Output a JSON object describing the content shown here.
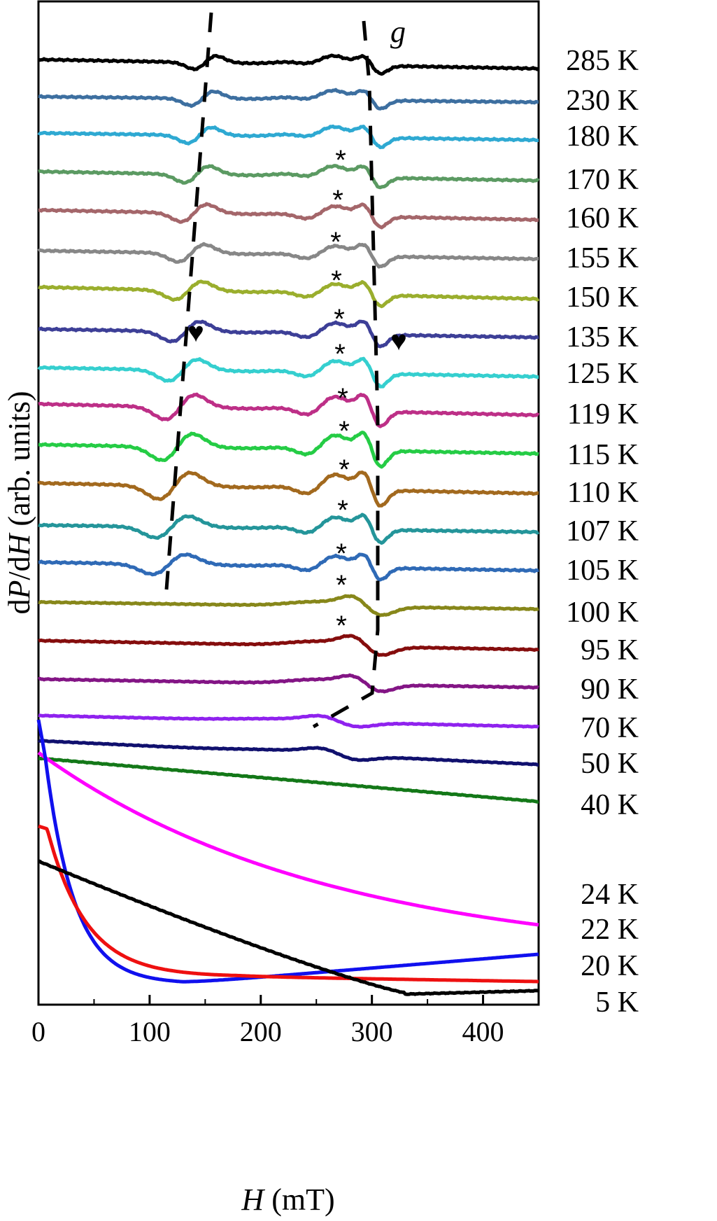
{
  "chart_data": {
    "type": "line",
    "xlabel": {
      "italic": "H",
      "unit": " (mT)"
    },
    "ylabel": {
      "d1": "d",
      "v1": "P",
      "slash": "/d",
      "v2": "H",
      "unit": " (arb. units)"
    },
    "xlim": [
      0,
      450
    ],
    "xticks": [
      0,
      100,
      200,
      300,
      400
    ],
    "xtick_labels": [
      "0",
      "100",
      "200",
      "300",
      "400"
    ],
    "yticks_shown": false,
    "annotation_g": "g",
    "asterisk": "*",
    "heart": "♥",
    "series": [
      {
        "name": "285 K",
        "color": "#000000",
        "style": "esr",
        "base": 85,
        "amp": 0.8,
        "right": 98
      },
      {
        "name": "230 K",
        "color": "#3d6fa0",
        "style": "esr",
        "base": 138,
        "amp": 0.85,
        "right": 146
      },
      {
        "name": "180 K",
        "color": "#2ea9d2",
        "style": "esr",
        "base": 190,
        "amp": 0.95,
        "right": 200
      },
      {
        "name": "170 K",
        "color": "#5b9a62",
        "style": "esr",
        "base": 245,
        "amp": 1.0,
        "right": 258
      },
      {
        "name": "160 K",
        "color": "#a4666a",
        "style": "esr",
        "base": 300,
        "amp": 1.05,
        "right": 314
      },
      {
        "name": "155 K",
        "color": "#878787",
        "style": "esr",
        "base": 358,
        "amp": 1.05,
        "right": 370
      },
      {
        "name": "150 K",
        "color": "#9aae2d",
        "style": "esr",
        "base": 410,
        "amp": 1.1,
        "right": 427
      },
      {
        "name": "135 K",
        "color": "#3d3f97",
        "style": "esr",
        "base": 470,
        "amp": 1.2,
        "right": 482
      },
      {
        "name": "125 K",
        "color": "#35cfcf",
        "style": "esr",
        "base": 525,
        "amp": 1.3,
        "right": 538
      },
      {
        "name": "119 K",
        "color": "#bd2f87",
        "style": "esr",
        "base": 577,
        "amp": 1.5,
        "right": 593
      },
      {
        "name": "115 K",
        "color": "#25cc45",
        "style": "esr",
        "base": 635,
        "amp": 1.6,
        "right": 648
      },
      {
        "name": "110 K",
        "color": "#a2691e",
        "style": "esr",
        "base": 690,
        "amp": 1.6,
        "right": 705
      },
      {
        "name": "107 K",
        "color": "#24959a",
        "style": "esr",
        "base": 750,
        "amp": 1.3,
        "right": 760
      },
      {
        "name": "105 K",
        "color": "#2f6ab6",
        "style": "esr",
        "base": 803,
        "amp": 1.2,
        "right": 815
      },
      {
        "name": "100 K",
        "color": "#87871a",
        "style": "single",
        "base": 860,
        "amp": 1.0,
        "right": 870
      },
      {
        "name": "95 K",
        "color": "#850d0d",
        "style": "single",
        "base": 915,
        "amp": 1.0,
        "right": 928
      },
      {
        "name": "90 K",
        "color": "#831585",
        "style": "single",
        "base": 970,
        "amp": 0.8,
        "right": 982
      },
      {
        "name": "70 K",
        "color": "#8f22ee",
        "style": "flat",
        "base": 1022,
        "amp": 0.8,
        "right": 1038
      },
      {
        "name": "50 K",
        "color": "#10106e",
        "style": "flat",
        "base": 1058,
        "amp": 0.8,
        "right": 1092
      },
      {
        "name": "40 K",
        "color": "#137818",
        "style": "slope",
        "base": 1083,
        "amp": 0,
        "right": 1145
      },
      {
        "name": "24 K",
        "color": "#ff00ff",
        "style": "decay_pink",
        "base": 1075,
        "amp": 0,
        "right": 1321
      },
      {
        "name": "22 K",
        "color": "#1010ee",
        "style": "decay_blue",
        "base": 1028,
        "amp": 0,
        "right": 1363
      },
      {
        "name": "20 K",
        "color": "#ee1010",
        "style": "decay_red",
        "base": 1180,
        "amp": 0,
        "right": 1402
      },
      {
        "name": "5 K",
        "color": "#000000",
        "style": "decay_black",
        "base": 1230,
        "amp": 0,
        "right": 1415
      }
    ]
  },
  "temperature_labels": [
    {
      "text": "285 K"
    },
    {
      "text": "230 K"
    },
    {
      "text": "180 K"
    },
    {
      "text": "170 K"
    },
    {
      "text": "160 K"
    },
    {
      "text": "155 K"
    },
    {
      "text": "150 K"
    },
    {
      "text": "135 K"
    },
    {
      "text": "125 K"
    },
    {
      "text": "119 K"
    },
    {
      "text": "115 K"
    },
    {
      "text": "110 K"
    },
    {
      "text": "107 K"
    },
    {
      "text": "105 K"
    },
    {
      "text": "100 K"
    },
    {
      "text": "95 K"
    },
    {
      "text": "90 K"
    },
    {
      "text": "70 K"
    },
    {
      "text": "50 K"
    },
    {
      "text": "40 K"
    },
    {
      "text": "24 K"
    },
    {
      "text": "22 K"
    },
    {
      "text": "20 K"
    },
    {
      "text": "5 K"
    }
  ]
}
